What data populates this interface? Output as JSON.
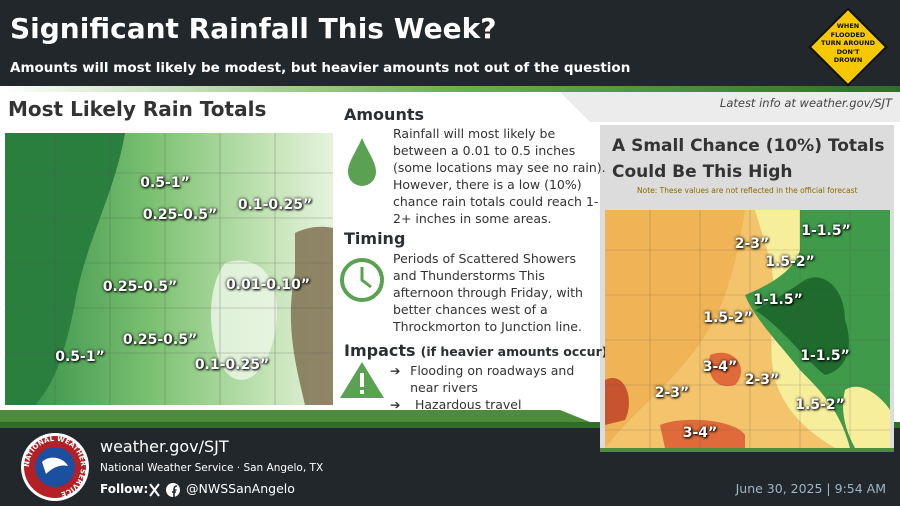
{
  "header": {
    "title": "Significant Rainfall This Week?",
    "subtitle": "Amounts will most likely be modest, but heavier amounts not out of the question",
    "sign": [
      "WHEN",
      "FLOODED",
      "TURN AROUND",
      "DON'T",
      "DROWN"
    ],
    "latest": "Latest info at weather.gov/SJT"
  },
  "left_map": {
    "title": "Most Likely Rain Totals",
    "labels": [
      "0.5-1”",
      "0.25-0.5”",
      "0.1-0.25”",
      "0.25-0.5”",
      "0.01-0.10”",
      "0.5-1”",
      "0.25-0.5”",
      "0.1-0.25”"
    ]
  },
  "amounts": {
    "heading": "Amounts",
    "text": "Rainfall will most likely be between a 0.01 to 0.5 inches (some locations may see no rain). However, there is a low (10%) chance rain totals could reach 1-2+ inches in some areas."
  },
  "timing": {
    "heading": "Timing",
    "text": "Periods of Scattered Showers and Thunderstorms This afternoon through Friday, with better chances west of a Throckmorton to Junction line."
  },
  "impacts": {
    "heading": "Impacts",
    "qualifier": "(if heavier amounts occur)",
    "items": [
      "Flooding on roadways and near rivers",
      "Hazardous travel"
    ]
  },
  "right_map": {
    "title": "A Small Chance (10%) Totals Could Be This High",
    "note": "Note: These values are not reflected in the official forecast",
    "labels": [
      "1-1.5”",
      "2-3”",
      "1.5-2”",
      "1-1.5”",
      "1.5-2”",
      "1-1.5”",
      "3-4”",
      "2-3”",
      "2-3”",
      "1.5-2”",
      "3-4”"
    ]
  },
  "footer": {
    "logo_text": "NATIONAL WEATHER SERVICE",
    "website": "weather.gov/SJT",
    "office": "National Weather Service · San Angelo, TX",
    "follow": "Follow:",
    "handle": "@NWSSanAngelo",
    "date": "June 30, 2025 | 9:54 AM"
  }
}
